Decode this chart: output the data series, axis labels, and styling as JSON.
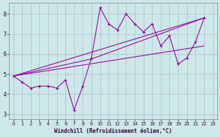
{
  "x_main": [
    0,
    1,
    2,
    3,
    4,
    5,
    6,
    7,
    8,
    9,
    10,
    11,
    12,
    13,
    14,
    15,
    16,
    17,
    18,
    19,
    20,
    21,
    22
  ],
  "y_main": [
    4.9,
    4.6,
    4.3,
    4.4,
    4.4,
    4.3,
    4.7,
    3.2,
    4.4,
    5.8,
    8.3,
    7.5,
    7.2,
    8.0,
    7.5,
    7.1,
    7.5,
    6.4,
    6.9,
    5.5,
    5.8,
    6.6,
    7.8
  ],
  "reg_line1_x": [
    0,
    22
  ],
  "reg_line1_y": [
    4.9,
    7.8
  ],
  "reg_line2_x": [
    0,
    22
  ],
  "reg_line2_y": [
    4.9,
    6.4
  ],
  "reg_line3_x": [
    0,
    9,
    22
  ],
  "reg_line3_y": [
    4.9,
    5.75,
    7.8
  ],
  "line_color": "#990099",
  "bg_color": "#cce8e8",
  "grid_color": "#b0b8cc",
  "xlabel": "Windchill (Refroidissement éolien,°C)",
  "ylim": [
    2.75,
    8.55
  ],
  "xlim": [
    -0.5,
    23.5
  ],
  "yticks": [
    3,
    4,
    5,
    6,
    7,
    8
  ],
  "xticks": [
    0,
    1,
    2,
    3,
    4,
    5,
    6,
    7,
    8,
    9,
    10,
    11,
    12,
    13,
    14,
    15,
    16,
    17,
    18,
    19,
    20,
    21,
    22,
    23
  ]
}
